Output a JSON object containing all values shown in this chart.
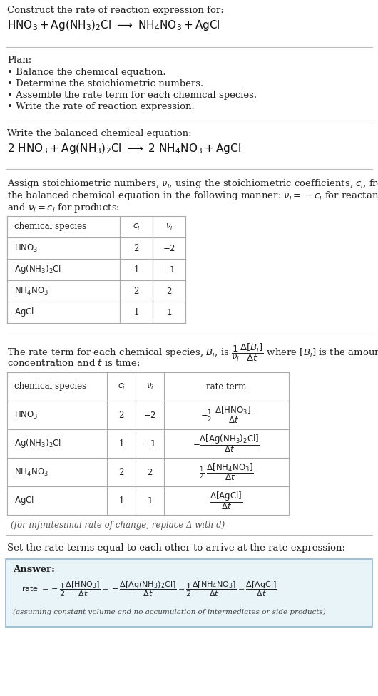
{
  "bg_color": "#ffffff",
  "text_color": "#222222",
  "title_line1": "Construct the rate of reaction expression for:",
  "plan_header": "Plan:",
  "plan_bullets": [
    "• Balance the chemical equation.",
    "• Determine the stoichiometric numbers.",
    "• Assemble the rate term for each chemical species.",
    "• Write the rate of reaction expression."
  ],
  "balanced_header": "Write the balanced chemical equation:",
  "set_header": "Set the rate terms equal to each other to arrive at the rate expression:",
  "infinitesimal_note": "(for infinitesimal rate of change, replace Δ with d)",
  "answer_label": "Answer:",
  "answer_note": "(assuming constant volume and no accumulation of intermediates or side products)",
  "table1_rows": [
    [
      "HNO₃",
      "2",
      "−2"
    ],
    [
      "Ag(NH₃)₂Cl",
      "1",
      "−1"
    ],
    [
      "NH₄NO₃",
      "2",
      "2"
    ],
    [
      "AgCl",
      "1",
      "1"
    ]
  ],
  "table2_rows": [
    [
      "HNO₃",
      "2",
      "−2"
    ],
    [
      "Ag(NH₃)₂Cl",
      "1",
      "−1"
    ],
    [
      "NH₄NO₃",
      "2",
      "2"
    ],
    [
      "AgCl",
      "1",
      "1"
    ]
  ],
  "answer_box_color": "#e8f4f8",
  "answer_box_border": "#90b8cc",
  "divider_color": "#bbbbbb",
  "table_line_color": "#aaaaaa"
}
